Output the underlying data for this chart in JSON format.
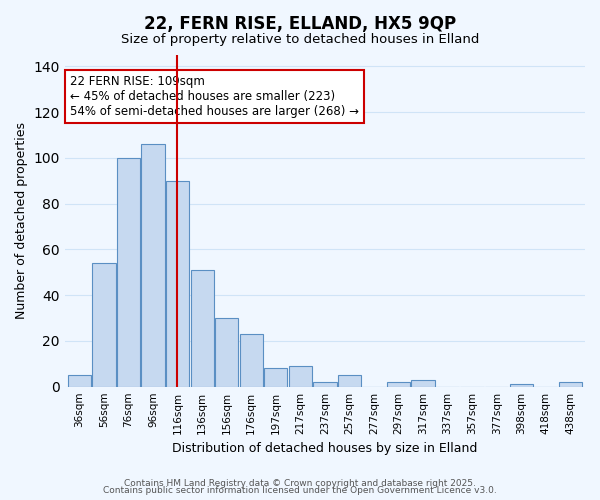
{
  "title": "22, FERN RISE, ELLAND, HX5 9QP",
  "subtitle": "Size of property relative to detached houses in Elland",
  "xlabel": "Distribution of detached houses by size in Elland",
  "ylabel": "Number of detached properties",
  "bar_labels": [
    "36sqm",
    "56sqm",
    "76sqm",
    "96sqm",
    "116sqm",
    "136sqm",
    "156sqm",
    "176sqm",
    "197sqm",
    "217sqm",
    "237sqm",
    "257sqm",
    "277sqm",
    "297sqm",
    "317sqm",
    "337sqm",
    "357sqm",
    "377sqm",
    "398sqm",
    "418sqm",
    "438sqm"
  ],
  "bar_values": [
    5,
    54,
    100,
    106,
    90,
    51,
    30,
    23,
    8,
    9,
    2,
    5,
    0,
    2,
    3,
    0,
    0,
    0,
    1,
    0,
    2
  ],
  "bar_color": "#c6d9f0",
  "bar_edge_color": "#5a8fc3",
  "ylim": [
    0,
    145
  ],
  "yticks": [
    0,
    20,
    40,
    60,
    80,
    100,
    120,
    140
  ],
  "grid_color": "#d0e4f7",
  "background_color": "#f0f7ff",
  "vline_x": 4,
  "vline_color": "#cc0000",
  "annotation_title": "22 FERN RISE: 109sqm",
  "annotation_line1": "← 45% of detached houses are smaller (223)",
  "annotation_line2": "54% of semi-detached houses are larger (268) →",
  "annotation_box_color": "#ffffff",
  "annotation_box_edge": "#cc0000",
  "footer_line1": "Contains HM Land Registry data © Crown copyright and database right 2025.",
  "footer_line2": "Contains public sector information licensed under the Open Government Licence v3.0."
}
